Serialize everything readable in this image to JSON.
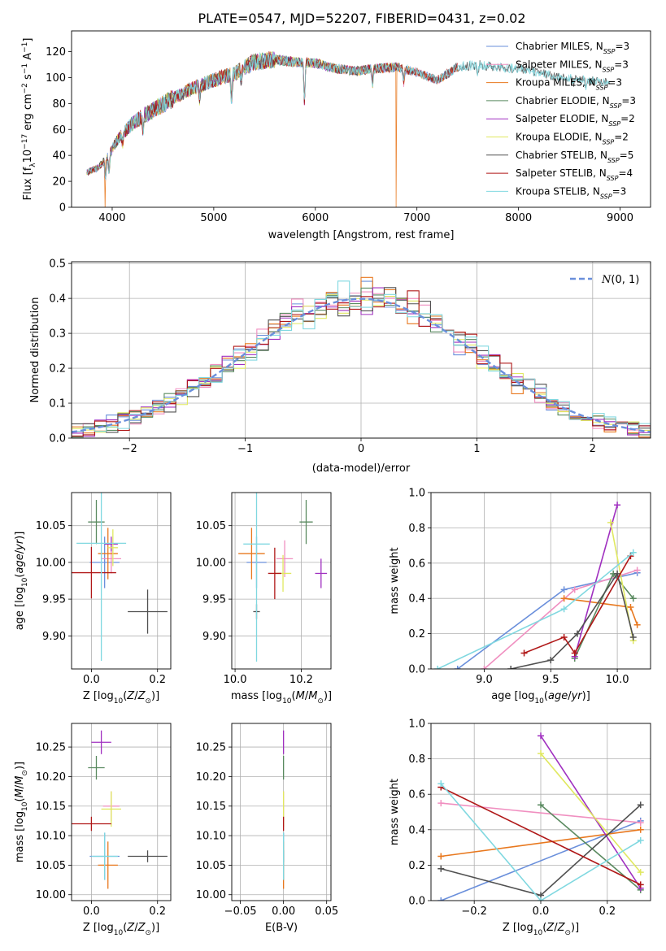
{
  "figure": {
    "title": "PLATE=0547, MJD=52207, FIBERID=0431, z=0.02"
  },
  "colors": {
    "Chabrier MILES": "#6a8fdb",
    "Salpeter MILES": "#f08fc0",
    "Kroupa MILES": "#e8781e",
    "Chabrier ELODIE": "#5a8a60",
    "Salpeter ELODIE": "#a030c0",
    "Kroupa ELODIE": "#e0e860",
    "Chabrier STELIB": "#505050",
    "Salpeter STELIB": "#b01818",
    "Kroupa STELIB": "#80d8e0"
  },
  "chart_data": [
    {
      "id": "spectrum",
      "type": "line",
      "xlabel": "wavelength [Angstrom, rest frame]",
      "ylabel": "Flux [f_λ10^-17 erg cm^-2 s^-1 A^-1]",
      "xlim": [
        3600,
        9300
      ],
      "ylim": [
        0,
        136
      ],
      "xticks": [
        4000,
        5000,
        6000,
        7000,
        8000,
        9000
      ],
      "yticks": [
        0,
        20,
        40,
        60,
        80,
        100,
        120
      ],
      "grid": false,
      "legend_position": "upper-right",
      "legend": [
        {
          "model": "Chabrier MILES",
          "label": "Chabrier MILES, N",
          "sub": "SSP",
          "tail": "=3"
        },
        {
          "model": "Salpeter MILES",
          "label": "Salpeter MILES, N",
          "sub": "SSP",
          "tail": "=3"
        },
        {
          "model": "Kroupa MILES",
          "label": "Kroupa MILES, N",
          "sub": "SSP",
          "tail": "=3"
        },
        {
          "model": "Chabrier ELODIE",
          "label": "Chabrier ELODIE, N",
          "sub": "SSP",
          "tail": "=3"
        },
        {
          "model": "Salpeter ELODIE",
          "label": "Salpeter ELODIE, N",
          "sub": "SSP",
          "tail": "=2"
        },
        {
          "model": "Kroupa ELODIE",
          "label": "Kroupa ELODIE, N",
          "sub": "SSP",
          "tail": "=2"
        },
        {
          "model": "Chabrier STELIB",
          "label": "Chabrier STELIB, N",
          "sub": "SSP",
          "tail": "=5"
        },
        {
          "model": "Salpeter STELIB",
          "label": "Salpeter STELIB, N",
          "sub": "SSP",
          "tail": "=4"
        },
        {
          "model": "Kroupa STELIB",
          "label": "Kroupa STELIB, N",
          "sub": "SSP",
          "tail": "=3"
        }
      ],
      "continuum": {
        "x": [
          3750,
          3850,
          3950,
          4050,
          4200,
          4400,
          4600,
          4800,
          5000,
          5200,
          5400,
          5600,
          5800,
          6000,
          6200,
          6400,
          6600,
          6800,
          7000,
          7200,
          7400,
          7600,
          7800,
          8000,
          8200,
          8400,
          8600,
          8800
        ],
        "y": [
          27,
          30,
          38,
          52,
          65,
          75,
          84,
          92,
          98,
          103,
          112,
          114,
          112,
          111,
          107,
          105,
          107,
          108,
          104,
          98,
          108,
          110,
          108,
          107,
          104,
          100,
          99,
          97
        ]
      },
      "features": [
        {
          "x": 3934,
          "depth": 0.45
        },
        {
          "x": 3969,
          "depth": 0.4
        },
        {
          "x": 4102,
          "depth": 0.15
        },
        {
          "x": 4305,
          "depth": 0.18
        },
        {
          "x": 4861,
          "depth": 0.12
        },
        {
          "x": 5175,
          "depth": 0.22
        },
        {
          "x": 5270,
          "depth": 0.08
        },
        {
          "x": 5893,
          "depth": 0.3
        },
        {
          "x": 6563,
          "depth": 0.12
        },
        {
          "x": 6870,
          "depth": 0.1
        },
        {
          "x": 7600,
          "depth": 0.08
        },
        {
          "x": 8542,
          "depth": 0.06
        },
        {
          "x": 8662,
          "depth": 0.06
        }
      ],
      "drops": [
        {
          "model": "Kroupa MILES",
          "x": 3930
        },
        {
          "model": "Kroupa MILES",
          "x": 6795
        },
        {
          "model": "Salpeter STELIB",
          "x": 7425
        }
      ],
      "model_ranges": {
        "Chabrier MILES": [
          3750,
          7400
        ],
        "Salpeter MILES": [
          3750,
          7400
        ],
        "Kroupa MILES": [
          3750,
          7400
        ],
        "Chabrier ELODIE": [
          3750,
          6800
        ],
        "Salpeter ELODIE": [
          3750,
          6800
        ],
        "Kroupa ELODIE": [
          3750,
          6800
        ],
        "Chabrier STELIB": [
          3750,
          8900
        ],
        "Salpeter STELIB": [
          3750,
          7400
        ],
        "Kroupa STELIB": [
          3750,
          8900
        ]
      }
    },
    {
      "id": "residuals",
      "type": "histogram",
      "xlabel": "(data-model)/error",
      "ylabel": "Normed distribution",
      "xlim": [
        -2.5,
        2.5
      ],
      "ylim": [
        0,
        0.505
      ],
      "xticks": [
        -2,
        -1,
        0,
        1,
        2
      ],
      "yticks": [
        0.0,
        0.1,
        0.2,
        0.3,
        0.4,
        0.5
      ],
      "grid": true,
      "legend_position": "upper-right",
      "reference": {
        "label": "N(0,1)",
        "mean": 0,
        "sigma": 1,
        "color": "#6a8fdb",
        "style": "dashed"
      },
      "bin_edges": [
        -2.5,
        2.5
      ],
      "bins": 50
    },
    {
      "id": "age-vs-Z",
      "type": "errorbar",
      "xlabel": "Z [log10(Z/Z_sun)]",
      "ylabel": "age [log10(age/yr)]",
      "xlim": [
        -0.06,
        0.24
      ],
      "ylim": [
        9.855,
        10.095
      ],
      "xticks": [
        0.0,
        0.2
      ],
      "yticks": [
        9.9,
        9.95,
        10.0,
        10.05
      ],
      "grid": true,
      "points": [
        {
          "model": "Chabrier MILES",
          "x": 0.04,
          "xerr": 0.045,
          "y": 10.0,
          "yerr": 0.035
        },
        {
          "model": "Salpeter MILES",
          "x": 0.06,
          "xerr": 0.03,
          "y": 10.005,
          "yerr": 0.02
        },
        {
          "model": "Kroupa MILES",
          "x": 0.05,
          "xerr": 0.03,
          "y": 10.012,
          "yerr": 0.035
        },
        {
          "model": "Chabrier ELODIE",
          "x": 0.015,
          "xerr": 0.025,
          "y": 10.055,
          "yerr": 0.03
        },
        {
          "model": "Salpeter ELODIE",
          "x": 0.06,
          "xerr": 0.02,
          "y": 10.025,
          "yerr": 0.01
        },
        {
          "model": "Kroupa ELODIE",
          "x": 0.065,
          "xerr": 0.015,
          "y": 10.02,
          "yerr": 0.025
        },
        {
          "model": "Chabrier STELIB",
          "x": 0.17,
          "xerr": 0.06,
          "y": 9.933,
          "yerr": 0.03
        },
        {
          "model": "Salpeter STELIB",
          "x": 0.0,
          "xerr": 0.075,
          "y": 9.986,
          "yerr": 0.035
        },
        {
          "model": "Kroupa STELIB",
          "x": 0.03,
          "xerr": 0.075,
          "y": 10.026,
          "yerr": 0.16
        }
      ]
    },
    {
      "id": "age-vs-mass",
      "type": "errorbar",
      "xlabel": "mass [log10(M/M_sun)]",
      "ylabel": "",
      "xlim": [
        9.99,
        10.29
      ],
      "ylim": [
        9.855,
        10.095
      ],
      "xticks": [
        10.0,
        10.2
      ],
      "yticks": [
        9.9,
        9.95,
        10.0,
        10.05
      ],
      "grid": true,
      "points": [
        {
          "model": "Chabrier MILES",
          "x": 10.065,
          "xerr": 0.03,
          "y": 10.0,
          "yerr": 0.035
        },
        {
          "model": "Salpeter MILES",
          "x": 10.15,
          "xerr": 0.025,
          "y": 10.005,
          "yerr": 0.025
        },
        {
          "model": "Kroupa MILES",
          "x": 10.05,
          "xerr": 0.04,
          "y": 10.012,
          "yerr": 0.035
        },
        {
          "model": "Chabrier ELODIE",
          "x": 10.215,
          "xerr": 0.02,
          "y": 10.055,
          "yerr": 0.03
        },
        {
          "model": "Salpeter ELODIE",
          "x": 10.26,
          "xerr": 0.018,
          "y": 9.985,
          "yerr": 0.02
        },
        {
          "model": "Kroupa ELODIE",
          "x": 10.145,
          "xerr": 0.025,
          "y": 9.985,
          "yerr": 0.025
        },
        {
          "model": "Chabrier STELIB",
          "x": 10.065,
          "xerr": 0.01,
          "y": 9.933,
          "yerr": 0.01
        },
        {
          "model": "Salpeter STELIB",
          "x": 10.12,
          "xerr": 0.02,
          "y": 9.985,
          "yerr": 0.035
        },
        {
          "model": "Kroupa STELIB",
          "x": 10.065,
          "xerr": 0.04,
          "y": 10.025,
          "yerr": 0.16
        }
      ]
    },
    {
      "id": "weight-vs-age",
      "type": "line",
      "xlabel": "age [log10(age/yr)]",
      "ylabel": "mass weight",
      "xlim": [
        8.6,
        10.25
      ],
      "ylim": [
        0,
        1.0
      ],
      "xticks": [
        9.0,
        9.5,
        10.0
      ],
      "yticks": [
        0.0,
        0.2,
        0.4,
        0.6,
        0.8,
        1.0
      ],
      "grid": true,
      "series": [
        {
          "model": "Chabrier MILES",
          "x": [
            8.8,
            9.6,
            10.15
          ],
          "y": [
            0.0,
            0.45,
            0.545
          ]
        },
        {
          "model": "Salpeter MILES",
          "x": [
            9.0,
            9.68,
            10.15
          ],
          "y": [
            0.0,
            0.45,
            0.56
          ]
        },
        {
          "model": "Kroupa MILES",
          "x": [
            9.6,
            10.1,
            10.15
          ],
          "y": [
            0.4,
            0.35,
            0.25
          ]
        },
        {
          "model": "Chabrier ELODIE",
          "x": [
            9.68,
            9.97,
            10.12
          ],
          "y": [
            0.06,
            0.54,
            0.4
          ]
        },
        {
          "model": "Salpeter ELODIE",
          "x": [
            9.68,
            10.0
          ],
          "y": [
            0.07,
            0.93
          ]
        },
        {
          "model": "Kroupa ELODIE",
          "x": [
            9.95,
            10.12
          ],
          "y": [
            0.83,
            0.16
          ]
        },
        {
          "model": "Chabrier STELIB",
          "x": [
            9.2,
            9.5,
            9.7,
            10.0,
            10.12
          ],
          "y": [
            0.0,
            0.05,
            0.2,
            0.54,
            0.18
          ]
        },
        {
          "model": "Salpeter STELIB",
          "x": [
            9.3,
            9.6,
            9.68,
            10.1
          ],
          "y": [
            0.09,
            0.18,
            0.09,
            0.64
          ]
        },
        {
          "model": "Kroupa STELIB",
          "x": [
            8.65,
            9.6,
            10.12
          ],
          "y": [
            0.0,
            0.34,
            0.66
          ]
        }
      ]
    },
    {
      "id": "mass-vs-Z",
      "type": "errorbar",
      "xlabel": "Z [log10(Z/Z_sun)]",
      "ylabel": "mass [log10(M/M_sun)]",
      "xlim": [
        -0.06,
        0.24
      ],
      "ylim": [
        9.99,
        10.29
      ],
      "xticks": [
        0.0,
        0.2
      ],
      "yticks": [
        10.0,
        10.05,
        10.1,
        10.15,
        10.2,
        10.25
      ],
      "grid": true,
      "points": [
        {
          "model": "Chabrier MILES",
          "x": 0.04,
          "xerr": 0.045,
          "y": 10.065,
          "yerr": 0.04
        },
        {
          "model": "Salpeter MILES",
          "x": 0.06,
          "xerr": 0.025,
          "y": 10.15,
          "yerr": 0.025
        },
        {
          "model": "Kroupa MILES",
          "x": 0.05,
          "xerr": 0.03,
          "y": 10.05,
          "yerr": 0.04
        },
        {
          "model": "Chabrier ELODIE",
          "x": 0.015,
          "xerr": 0.025,
          "y": 10.215,
          "yerr": 0.02
        },
        {
          "model": "Salpeter ELODIE",
          "x": 0.03,
          "xerr": 0.03,
          "y": 10.258,
          "yerr": 0.02
        },
        {
          "model": "Kroupa ELODIE",
          "x": 0.06,
          "xerr": 0.03,
          "y": 10.145,
          "yerr": 0.03
        },
        {
          "model": "Chabrier STELIB",
          "x": 0.17,
          "xerr": 0.06,
          "y": 10.065,
          "yerr": 0.01
        },
        {
          "model": "Salpeter STELIB",
          "x": 0.0,
          "xerr": 0.06,
          "y": 10.12,
          "yerr": 0.012
        },
        {
          "model": "Kroupa STELIB",
          "x": 0.04,
          "xerr": 0.04,
          "y": 10.065,
          "yerr": 0.04
        }
      ]
    },
    {
      "id": "mass-vs-EBV",
      "type": "errorbar",
      "xlabel": "E(B-V)",
      "ylabel": "",
      "xlim": [
        -0.06,
        0.055
      ],
      "ylim": [
        9.99,
        10.29
      ],
      "xticks": [
        -0.05,
        0.0,
        0.05
      ],
      "yticks": [
        10.0,
        10.05,
        10.1,
        10.15,
        10.2,
        10.25
      ],
      "grid": true,
      "points": [
        {
          "model": "Chabrier MILES",
          "x": 0.0,
          "xerr": 0.0,
          "y": 10.065,
          "yerr": 0.04
        },
        {
          "model": "Salpeter MILES",
          "x": 0.0,
          "xerr": 0.0,
          "y": 10.15,
          "yerr": 0.025
        },
        {
          "model": "Kroupa MILES",
          "x": 0.0,
          "xerr": 0.0,
          "y": 10.05,
          "yerr": 0.04
        },
        {
          "model": "Chabrier ELODIE",
          "x": 0.0,
          "xerr": 0.0,
          "y": 10.215,
          "yerr": 0.02
        },
        {
          "model": "Salpeter ELODIE",
          "x": 0.0,
          "xerr": 0.0,
          "y": 10.258,
          "yerr": 0.02
        },
        {
          "model": "Kroupa ELODIE",
          "x": 0.0,
          "xerr": 0.0,
          "y": 10.145,
          "yerr": 0.03
        },
        {
          "model": "Chabrier STELIB",
          "x": 0.0,
          "xerr": 0.0,
          "y": 10.065,
          "yerr": 0.01
        },
        {
          "model": "Salpeter STELIB",
          "x": 0.0,
          "xerr": 0.0,
          "y": 10.12,
          "yerr": 0.012
        },
        {
          "model": "Kroupa STELIB",
          "x": 0.0,
          "xerr": 0.0,
          "y": 10.065,
          "yerr": 0.04
        }
      ]
    },
    {
      "id": "weight-vs-Z",
      "type": "line",
      "xlabel": "Z [log10(Z/Z_sun)]",
      "ylabel": "mass weight",
      "xlim": [
        -0.33,
        0.33
      ],
      "ylim": [
        0,
        1.0
      ],
      "xticks": [
        -0.2,
        0.0,
        0.2
      ],
      "yticks": [
        0.0,
        0.2,
        0.4,
        0.6,
        0.8,
        1.0
      ],
      "grid": true,
      "series": [
        {
          "model": "Chabrier MILES",
          "x": [
            -0.3,
            0.3
          ],
          "y": [
            0.0,
            0.45
          ]
        },
        {
          "model": "Salpeter MILES",
          "x": [
            -0.3,
            0.3
          ],
          "y": [
            0.55,
            0.44
          ]
        },
        {
          "model": "Kroupa MILES",
          "x": [
            -0.3,
            0.3
          ],
          "y": [
            0.25,
            0.4
          ]
        },
        {
          "model": "Chabrier ELODIE",
          "x": [
            0.0,
            0.3
          ],
          "y": [
            0.54,
            0.06
          ]
        },
        {
          "model": "Salpeter ELODIE",
          "x": [
            0.0,
            0.3
          ],
          "y": [
            0.93,
            0.07
          ]
        },
        {
          "model": "Kroupa ELODIE",
          "x": [
            0.0,
            0.3
          ],
          "y": [
            0.83,
            0.16
          ]
        },
        {
          "model": "Chabrier STELIB",
          "x": [
            -0.3,
            0.0,
            0.3
          ],
          "y": [
            0.18,
            0.03,
            0.54
          ]
        },
        {
          "model": "Salpeter STELIB",
          "x": [
            -0.3,
            0.3
          ],
          "y": [
            0.64,
            0.09
          ]
        },
        {
          "model": "Kroupa STELIB",
          "x": [
            -0.3,
            0.0,
            0.3
          ],
          "y": [
            0.66,
            0.0,
            0.34
          ]
        }
      ]
    }
  ]
}
